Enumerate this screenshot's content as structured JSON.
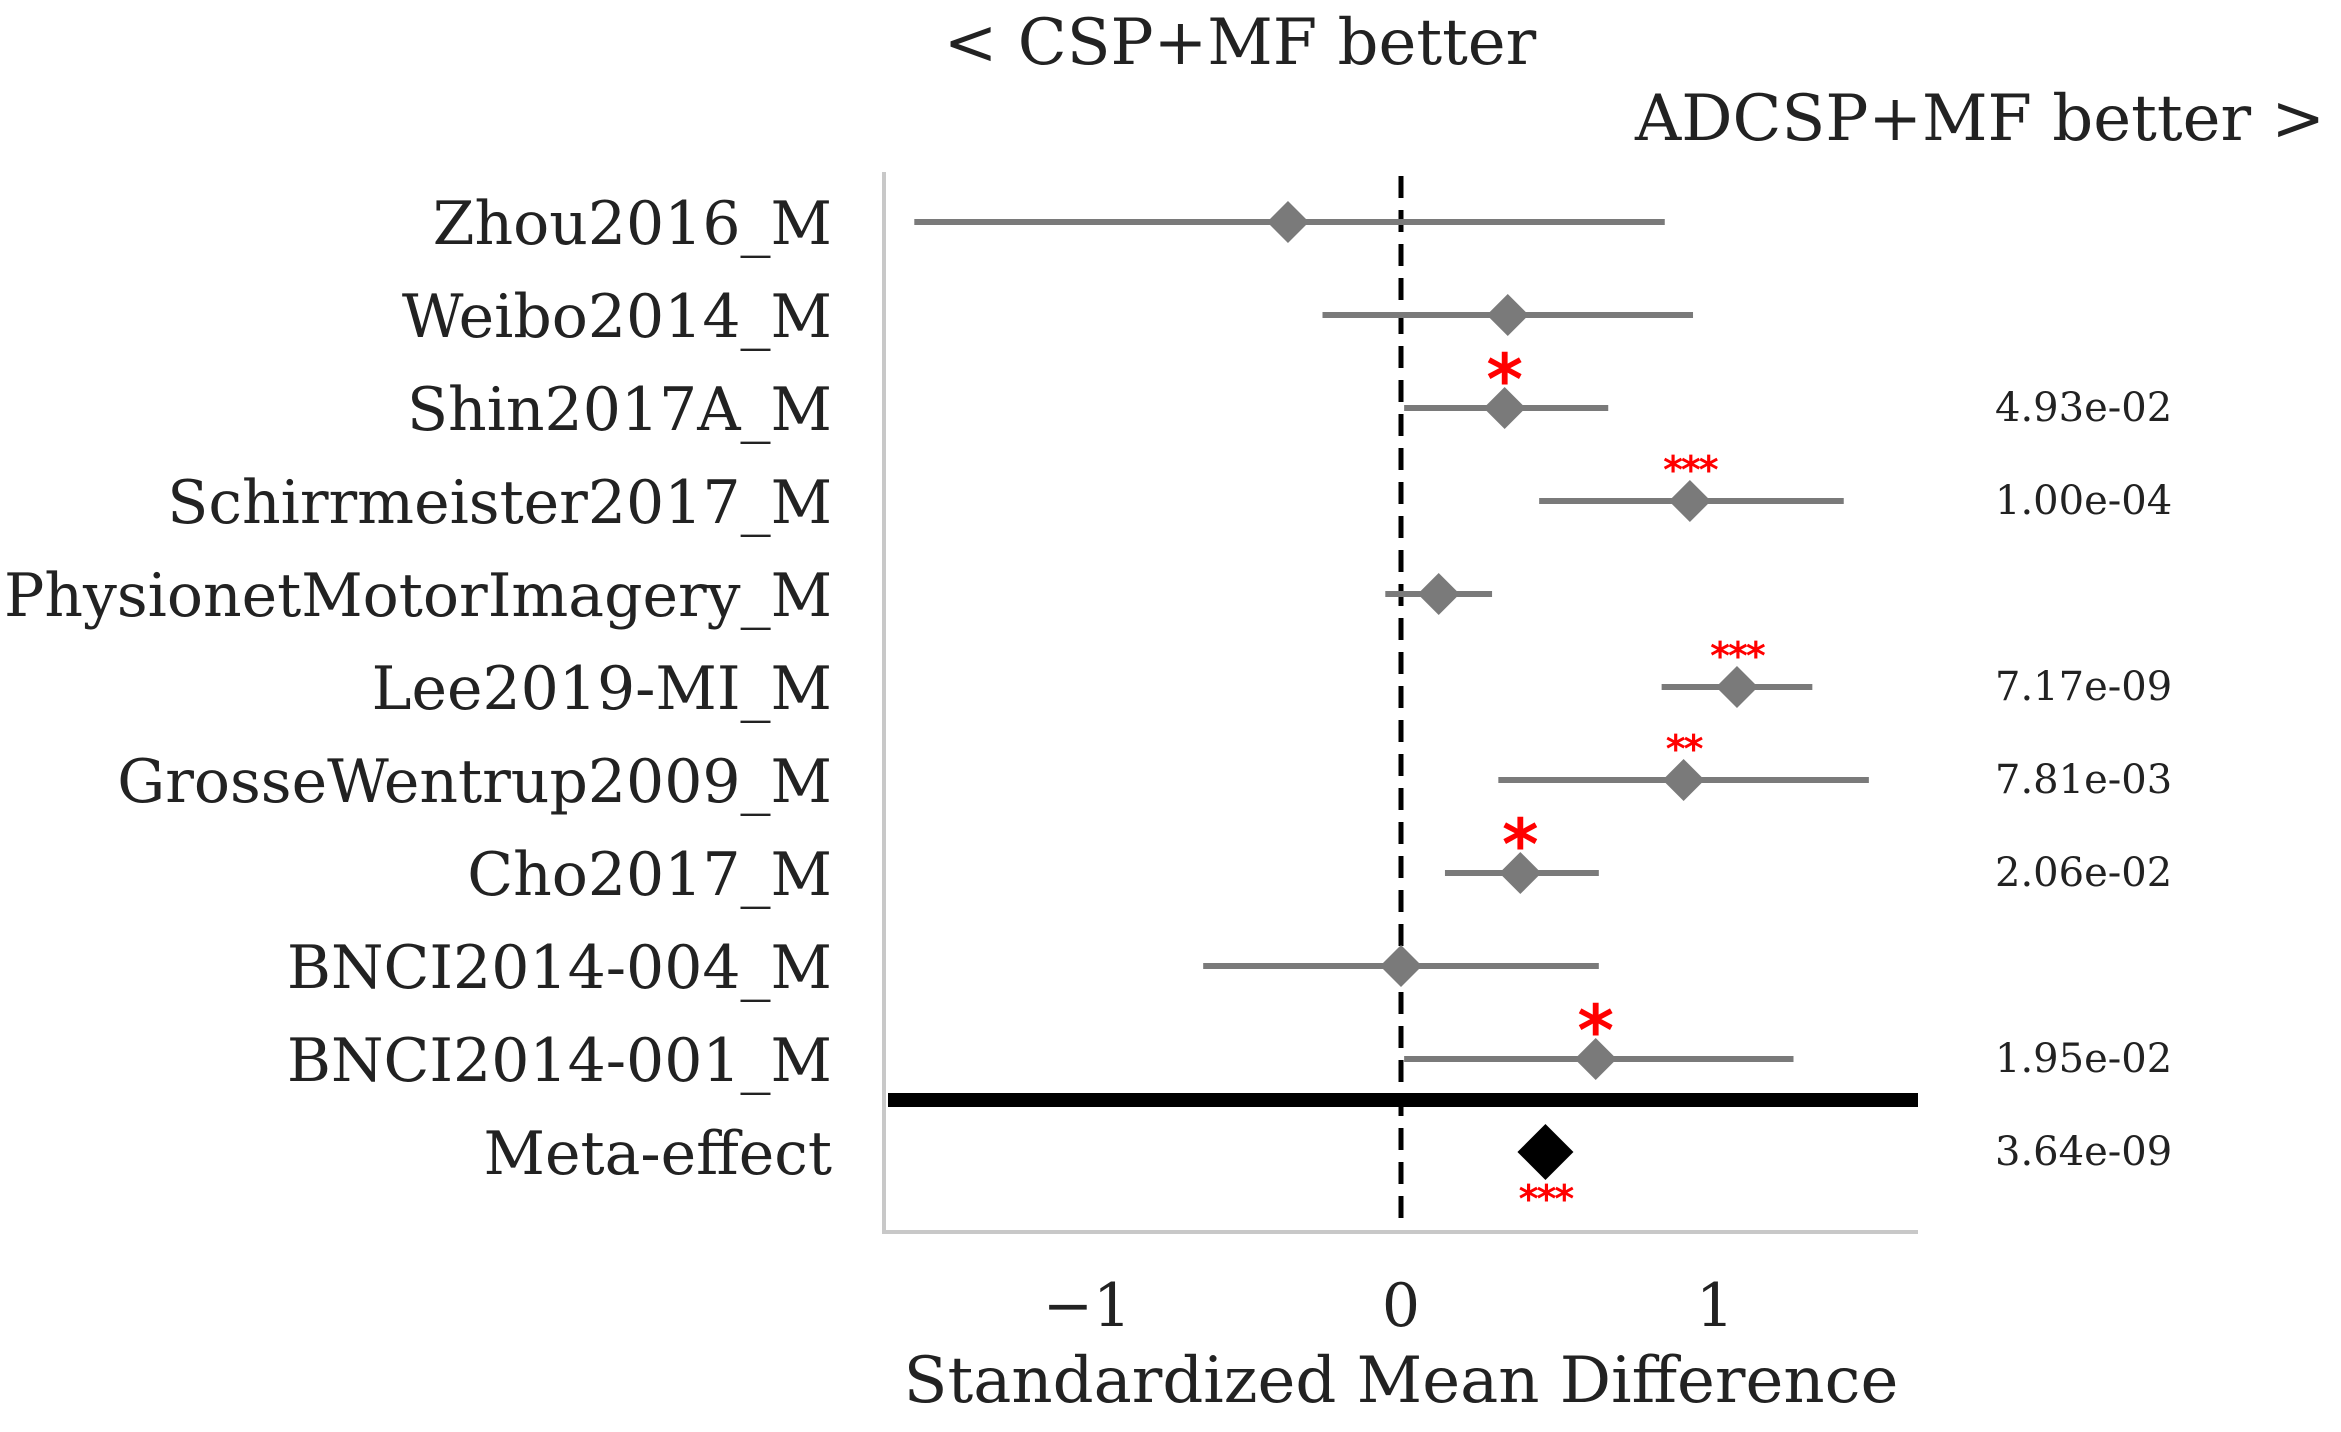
{
  "chart_data": {
    "type": "forest",
    "left_header": "< CSP+MF better",
    "right_header": "ADCSP+MF better >",
    "xlabel": "Standardized Mean Difference",
    "xlim": [
      -1.64,
      1.64
    ],
    "xticks": [
      -1,
      0,
      1
    ],
    "xtick_labels": [
      "−1",
      "0",
      "1"
    ],
    "colors": {
      "study": "#7a7a7a",
      "meta": "#000000",
      "significance": "#ff0000",
      "axis": "#c8c8c8",
      "text": "#222222"
    },
    "studies": [
      {
        "name": "Zhou2016_M",
        "effect": -0.36,
        "ci": [
          -1.55,
          0.84
        ],
        "stars": "",
        "pvalue": ""
      },
      {
        "name": "Weibo2014_M",
        "effect": 0.34,
        "ci": [
          -0.25,
          0.93
        ],
        "stars": "",
        "pvalue": ""
      },
      {
        "name": "Shin2017A_M",
        "effect": 0.33,
        "ci": [
          0.01,
          0.66
        ],
        "stars": "*",
        "pvalue": "4.93e-02"
      },
      {
        "name": "Schirrmeister2017_M",
        "effect": 0.92,
        "ci": [
          0.44,
          1.41
        ],
        "stars": "***",
        "pvalue": "1.00e-04"
      },
      {
        "name": "PhysionetMotorImagery_M",
        "effect": 0.12,
        "ci": [
          -0.05,
          0.29
        ],
        "stars": "",
        "pvalue": ""
      },
      {
        "name": "Lee2019-MI_M",
        "effect": 1.07,
        "ci": [
          0.83,
          1.31
        ],
        "stars": "***",
        "pvalue": "7.17e-09"
      },
      {
        "name": "GrosseWentrup2009_M",
        "effect": 0.9,
        "ci": [
          0.31,
          1.49
        ],
        "stars": "**",
        "pvalue": "7.81e-03"
      },
      {
        "name": "Cho2017_M",
        "effect": 0.38,
        "ci": [
          0.14,
          0.63
        ],
        "stars": "*",
        "pvalue": "2.06e-02"
      },
      {
        "name": "BNCI2014-004_M",
        "effect": 0.0,
        "ci": [
          -0.63,
          0.63
        ],
        "stars": "",
        "pvalue": ""
      },
      {
        "name": "BNCI2014-001_M",
        "effect": 0.62,
        "ci": [
          0.01,
          1.25
        ],
        "stars": "*",
        "pvalue": "1.95e-02"
      }
    ],
    "meta": {
      "name": "Meta-effect",
      "effect": 0.46,
      "stars": "***",
      "pvalue": "3.64e-09"
    }
  }
}
